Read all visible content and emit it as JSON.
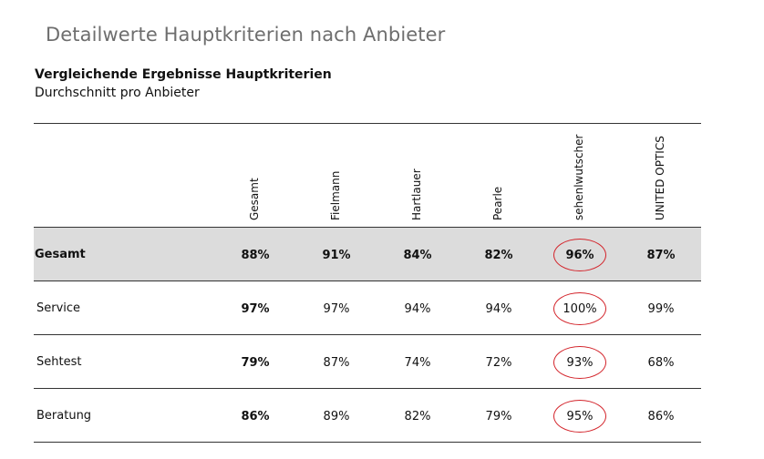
{
  "page": {
    "title": "Detailwerte Hauptkriterien nach Anbieter",
    "subtitle": "Vergleichende Ergebnisse Hauptkriterien",
    "caption": "Durchschnitt pro Anbieter"
  },
  "table": {
    "columns": [
      "Gesamt",
      "Fielmann",
      "Hartlauer",
      "Pearle",
      "sehenlwutscher",
      "UNITED OPTICS"
    ],
    "rows": [
      {
        "label": "Gesamt",
        "values": [
          "88%",
          "91%",
          "84%",
          "82%",
          "96%",
          "87%"
        ]
      },
      {
        "label": "Service",
        "values": [
          "97%",
          "97%",
          "94%",
          "94%",
          "100%",
          "99%"
        ]
      },
      {
        "label": "Sehtest",
        "values": [
          "79%",
          "87%",
          "74%",
          "72%",
          "93%",
          "68%"
        ]
      },
      {
        "label": "Beratung",
        "values": [
          "86%",
          "89%",
          "82%",
          "79%",
          "95%",
          "86%"
        ]
      }
    ]
  },
  "highlight": {
    "column": "sehenlwutscher",
    "color": "#d3232a"
  },
  "colors": {
    "summary_row_bg": "#dcdcdc",
    "title": "#6e6e6e"
  }
}
